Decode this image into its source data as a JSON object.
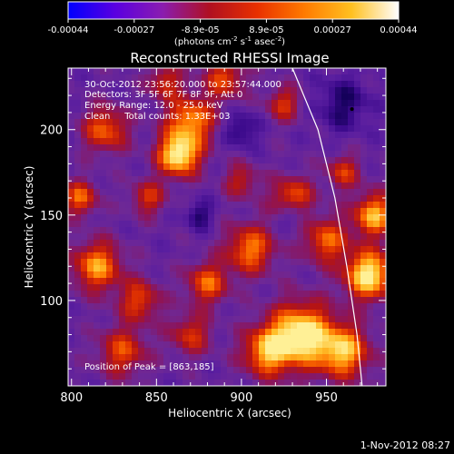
{
  "colorbar": {
    "ticks": [
      "-0.00044",
      "-0.00027",
      "-8.9e-05",
      "8.9e-05",
      "0.00027",
      "0.00044"
    ],
    "units_main": "(photons cm",
    "units_sup1": "-2",
    "units_mid": " s",
    "units_sup2": "-1",
    "units_end": " asec",
    "units_sup3": "-2",
    "units_close": ")",
    "colors": [
      "#0000ff",
      "#5a00e0",
      "#8a1cb0",
      "#b01020",
      "#e83000",
      "#ff7a00",
      "#ffc020",
      "#ffffff"
    ]
  },
  "chart_data": {
    "type": "heatmap",
    "title": "Reconstructed RHESSI Image",
    "xlabel": "Heliocentric X (arcsec)",
    "ylabel": "Heliocentric Y (arcsec)",
    "xlim": [
      798,
      985
    ],
    "ylim": [
      50,
      236
    ],
    "x_ticks": [
      800,
      850,
      900,
      950
    ],
    "y_ticks": [
      100,
      150,
      200
    ],
    "annotations": [
      "30-Oct-2012 23:56:20.000 to 23:57:44.000",
      "Detectors: 3F 5F 6F 7F 8F 9F, Att 0",
      "Energy Range: 12.0 - 25.0 keV",
      "Clean     Total counts: 1.33E+03"
    ],
    "peak_label": "Position of Peak = [863,185]",
    "peak": [
      863,
      185
    ],
    "limb_curve": [
      [
        930,
        236
      ],
      [
        945,
        200
      ],
      [
        955,
        160
      ],
      [
        962,
        120
      ],
      [
        968,
        80
      ],
      [
        971,
        50
      ]
    ],
    "minimum_marker": [
      965,
      212
    ]
  },
  "footer": {
    "date": "1-Nov-2012 08:27"
  }
}
